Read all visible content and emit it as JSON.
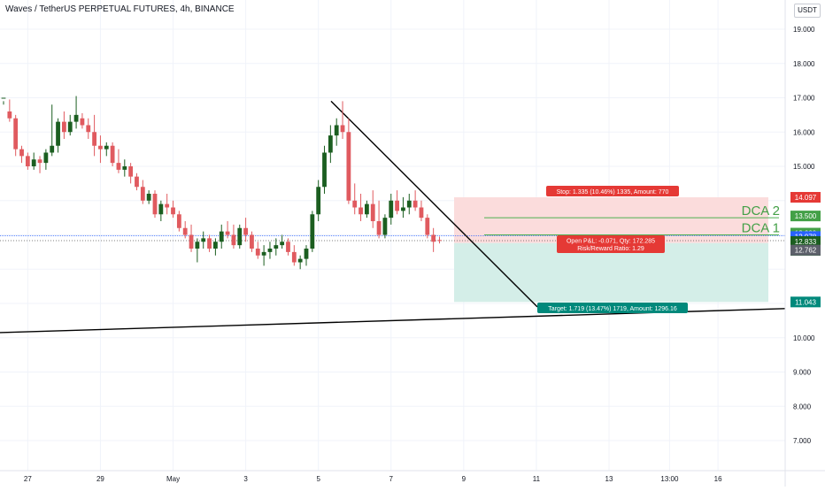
{
  "header": {
    "title": "Waves / TetherUS PERPETUAL FUTURES, 4h, BINANCE",
    "currency": "USDT"
  },
  "colors": {
    "up": "#1b5e20",
    "down": "#e05a5f",
    "stop_zone": "#fbdcdc",
    "target_zone": "#d4eee8",
    "grid": "#f0f3fa",
    "price_line": "#2962ff"
  },
  "chart_data": {
    "type": "candlestick",
    "yaxis": {
      "range": [
        6.2,
        20.0
      ],
      "ticks": [
        "19.000",
        "18.000",
        "17.000",
        "16.000",
        "15.000",
        "13.000",
        "10.000",
        "9.000",
        "8.000",
        "7.000"
      ]
    },
    "xaxis": {
      "ticks": [
        {
          "label": "27",
          "i": 4
        },
        {
          "label": "29",
          "i": 16
        },
        {
          "label": "May",
          "i": 28
        },
        {
          "label": "3",
          "i": 40
        },
        {
          "label": "5",
          "i": 52
        },
        {
          "label": "7",
          "i": 64
        },
        {
          "label": "9",
          "i": 76
        },
        {
          "label": "11",
          "i": 88
        },
        {
          "label": "13",
          "i": 100
        },
        {
          "label": "13:00",
          "i": 110
        },
        {
          "label": "16",
          "i": 118
        }
      ]
    },
    "candles": [
      [
        17.0,
        16.9,
        16.8,
        17.0
      ],
      [
        16.6,
        16.95,
        16.3,
        16.4
      ],
      [
        16.4,
        16.5,
        15.3,
        15.5
      ],
      [
        15.5,
        15.6,
        15.1,
        15.3
      ],
      [
        15.3,
        15.4,
        14.9,
        15.0
      ],
      [
        15.0,
        15.4,
        14.9,
        15.2
      ],
      [
        15.2,
        15.3,
        14.8,
        15.1
      ],
      [
        15.1,
        15.5,
        14.9,
        15.4
      ],
      [
        15.4,
        16.8,
        15.3,
        15.6
      ],
      [
        15.6,
        16.4,
        15.4,
        16.3
      ],
      [
        16.3,
        16.6,
        15.8,
        16.0
      ],
      [
        16.0,
        16.5,
        15.9,
        16.3
      ],
      [
        16.3,
        17.05,
        16.1,
        16.5
      ],
      [
        16.4,
        16.55,
        16.1,
        16.2
      ],
      [
        16.2,
        16.4,
        15.8,
        16.0
      ],
      [
        16.0,
        16.5,
        15.3,
        15.6
      ],
      [
        15.6,
        15.9,
        15.1,
        15.5
      ],
      [
        15.5,
        15.7,
        15.3,
        15.6
      ],
      [
        15.6,
        15.7,
        15.0,
        15.1
      ],
      [
        15.1,
        15.5,
        14.8,
        14.9
      ],
      [
        14.9,
        15.2,
        14.7,
        15.0
      ],
      [
        15.0,
        15.1,
        14.5,
        14.7
      ],
      [
        14.7,
        14.8,
        14.3,
        14.4
      ],
      [
        14.4,
        14.6,
        13.9,
        14.0
      ],
      [
        14.0,
        14.3,
        13.9,
        14.2
      ],
      [
        14.2,
        14.3,
        13.5,
        13.6
      ],
      [
        13.6,
        14.0,
        13.4,
        13.9
      ],
      [
        13.9,
        14.2,
        13.6,
        13.8
      ],
      [
        13.8,
        14.0,
        13.5,
        13.6
      ],
      [
        13.6,
        13.7,
        13.1,
        13.2
      ],
      [
        13.2,
        13.4,
        12.9,
        13.0
      ],
      [
        13.0,
        13.3,
        12.5,
        12.6
      ],
      [
        12.6,
        12.9,
        12.2,
        12.8
      ],
      [
        12.8,
        13.1,
        12.6,
        12.9
      ],
      [
        12.9,
        13.0,
        12.5,
        12.6
      ],
      [
        12.6,
        12.9,
        12.4,
        12.8
      ],
      [
        12.8,
        13.3,
        12.6,
        13.1
      ],
      [
        13.1,
        13.4,
        12.9,
        13.0
      ],
      [
        13.0,
        13.3,
        12.6,
        12.7
      ],
      [
        12.7,
        13.3,
        12.6,
        13.2
      ],
      [
        13.2,
        13.5,
        12.8,
        13.0
      ],
      [
        13.0,
        13.1,
        12.5,
        12.6
      ],
      [
        12.6,
        12.8,
        12.3,
        12.4
      ],
      [
        12.4,
        12.7,
        12.1,
        12.5
      ],
      [
        12.5,
        12.8,
        12.3,
        12.6
      ],
      [
        12.6,
        12.9,
        12.4,
        12.7
      ],
      [
        12.7,
        13.0,
        12.6,
        12.8
      ],
      [
        12.8,
        12.9,
        12.4,
        12.5
      ],
      [
        12.5,
        12.7,
        12.1,
        12.2
      ],
      [
        12.2,
        12.4,
        12.0,
        12.3
      ],
      [
        12.3,
        12.7,
        12.1,
        12.6
      ],
      [
        12.6,
        13.7,
        12.5,
        13.6
      ],
      [
        13.6,
        14.6,
        13.4,
        14.4
      ],
      [
        14.4,
        15.6,
        14.2,
        15.4
      ],
      [
        15.4,
        16.2,
        15.1,
        15.9
      ],
      [
        15.9,
        16.4,
        15.6,
        16.2
      ],
      [
        16.2,
        16.9,
        15.8,
        16.0
      ],
      [
        16.0,
        16.4,
        13.9,
        14.0
      ],
      [
        14.0,
        14.5,
        13.6,
        13.8
      ],
      [
        13.8,
        14.2,
        13.4,
        13.6
      ],
      [
        13.6,
        14.0,
        13.5,
        13.9
      ],
      [
        13.9,
        14.3,
        13.2,
        13.4
      ],
      [
        13.4,
        14.0,
        12.9,
        13.0
      ],
      [
        13.0,
        13.6,
        12.9,
        13.5
      ],
      [
        13.5,
        14.2,
        13.3,
        14.0
      ],
      [
        14.0,
        14.3,
        13.6,
        13.7
      ],
      [
        13.7,
        14.1,
        13.5,
        13.8
      ],
      [
        13.8,
        14.2,
        13.6,
        14.0
      ],
      [
        14.0,
        14.3,
        13.7,
        13.8
      ],
      [
        13.8,
        14.0,
        13.4,
        13.5
      ],
      [
        13.5,
        13.6,
        12.9,
        13.0
      ],
      [
        13.0,
        13.2,
        12.5,
        12.8
      ],
      [
        12.85,
        12.95,
        12.75,
        12.83
      ]
    ],
    "levels": {
      "stop": 14.097,
      "dca2": 13.5,
      "dca1": 13.0,
      "bid": 12.978,
      "last": 12.833,
      "entry": 12.762,
      "target": 11.043
    },
    "labels": {
      "stop_box": "Stop: 1.335 (10.46%) 1335, Amount: 770",
      "pnl_box_line1": "Open P&L: -0.071, Qty: 172.285",
      "pnl_box_line2": "Risk/Reward Ratio: 1.29",
      "target_box": "Target: 1.719 (13.47%) 1719, Amount: 1296.16",
      "dca2_label": "DCA 2",
      "dca1_label": "DCA 1",
      "stop_tag": "14.097",
      "dca2_tag": "13.500",
      "dca1_tag": "13.000",
      "bid_tag": "12.978",
      "last_tag": "12.833",
      "countdown_tag": "01:46:14",
      "entry_tag": "12.762",
      "target_tag": "11.043"
    }
  }
}
